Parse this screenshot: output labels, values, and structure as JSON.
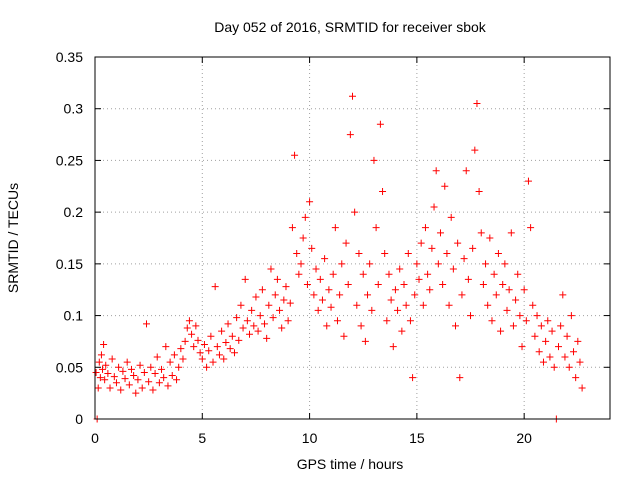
{
  "chart_data": {
    "type": "scatter",
    "title": "Day 052 of 2016, SRMTID for receiver sbok",
    "xlabel": "GPS time / hours",
    "ylabel": "SRMTID / TECUs",
    "xlim": [
      0,
      24
    ],
    "ylim": [
      0,
      0.35
    ],
    "xticks": [
      0,
      5,
      10,
      15,
      20
    ],
    "xtick_labels": [
      "0",
      "5",
      "10",
      "15",
      "20"
    ],
    "yticks": [
      0,
      0.05,
      0.1,
      0.15,
      0.2,
      0.25,
      0.3,
      0.35
    ],
    "ytick_labels": [
      "0",
      "0.05",
      "0.1",
      "0.15",
      "0.2",
      "0.25",
      "0.3",
      "0.35"
    ],
    "grid": true,
    "marker": "+",
    "color": "#ff0000",
    "series": [
      {
        "name": "SRMTID",
        "points": [
          [
            0.05,
            0.045
          ],
          [
            0.1,
            0.0
          ],
          [
            0.15,
            0.03
          ],
          [
            0.2,
            0.055
          ],
          [
            0.25,
            0.04
          ],
          [
            0.3,
            0.062
          ],
          [
            0.35,
            0.048
          ],
          [
            0.4,
            0.072
          ],
          [
            0.45,
            0.038
          ],
          [
            0.5,
            0.052
          ],
          [
            0.6,
            0.044
          ],
          [
            0.7,
            0.03
          ],
          [
            0.8,
            0.058
          ],
          [
            0.9,
            0.041
          ],
          [
            1.0,
            0.035
          ],
          [
            1.1,
            0.05
          ],
          [
            1.2,
            0.028
          ],
          [
            1.3,
            0.046
          ],
          [
            1.4,
            0.039
          ],
          [
            1.5,
            0.055
          ],
          [
            1.6,
            0.033
          ],
          [
            1.7,
            0.048
          ],
          [
            1.8,
            0.042
          ],
          [
            1.9,
            0.025
          ],
          [
            2.0,
            0.038
          ],
          [
            2.1,
            0.052
          ],
          [
            2.2,
            0.03
          ],
          [
            2.3,
            0.045
          ],
          [
            2.4,
            0.092
          ],
          [
            2.5,
            0.036
          ],
          [
            2.6,
            0.05
          ],
          [
            2.7,
            0.028
          ],
          [
            2.8,
            0.044
          ],
          [
            2.9,
            0.06
          ],
          [
            3.0,
            0.035
          ],
          [
            3.1,
            0.048
          ],
          [
            3.2,
            0.04
          ],
          [
            3.3,
            0.07
          ],
          [
            3.4,
            0.032
          ],
          [
            3.5,
            0.055
          ],
          [
            3.6,
            0.042
          ],
          [
            3.7,
            0.062
          ],
          [
            3.8,
            0.038
          ],
          [
            3.9,
            0.05
          ],
          [
            4.0,
            0.068
          ],
          [
            4.1,
            0.058
          ],
          [
            4.2,
            0.075
          ],
          [
            4.3,
            0.088
          ],
          [
            4.4,
            0.095
          ],
          [
            4.5,
            0.082
          ],
          [
            4.6,
            0.07
          ],
          [
            4.7,
            0.09
          ],
          [
            4.8,
            0.076
          ],
          [
            4.9,
            0.064
          ],
          [
            5.0,
            0.058
          ],
          [
            5.1,
            0.072
          ],
          [
            5.2,
            0.05
          ],
          [
            5.3,
            0.066
          ],
          [
            5.4,
            0.08
          ],
          [
            5.5,
            0.055
          ],
          [
            5.6,
            0.128
          ],
          [
            5.7,
            0.07
          ],
          [
            5.8,
            0.062
          ],
          [
            5.9,
            0.085
          ],
          [
            6.0,
            0.058
          ],
          [
            6.1,
            0.074
          ],
          [
            6.2,
            0.092
          ],
          [
            6.3,
            0.068
          ],
          [
            6.4,
            0.08
          ],
          [
            6.5,
            0.064
          ],
          [
            6.6,
            0.098
          ],
          [
            6.7,
            0.076
          ],
          [
            6.8,
            0.11
          ],
          [
            6.9,
            0.088
          ],
          [
            7.0,
            0.135
          ],
          [
            7.1,
            0.095
          ],
          [
            7.2,
            0.082
          ],
          [
            7.3,
            0.105
          ],
          [
            7.4,
            0.09
          ],
          [
            7.5,
            0.118
          ],
          [
            7.6,
            0.085
          ],
          [
            7.7,
            0.1
          ],
          [
            7.8,
            0.125
          ],
          [
            7.9,
            0.092
          ],
          [
            8.0,
            0.078
          ],
          [
            8.1,
            0.11
          ],
          [
            8.2,
            0.145
          ],
          [
            8.3,
            0.098
          ],
          [
            8.4,
            0.12
          ],
          [
            8.5,
            0.135
          ],
          [
            8.6,
            0.105
          ],
          [
            8.7,
            0.088
          ],
          [
            8.8,
            0.115
          ],
          [
            8.9,
            0.128
          ],
          [
            9.0,
            0.095
          ],
          [
            9.1,
            0.112
          ],
          [
            9.2,
            0.185
          ],
          [
            9.3,
            0.255
          ],
          [
            9.4,
            0.16
          ],
          [
            9.5,
            0.14
          ],
          [
            9.6,
            0.15
          ],
          [
            9.7,
            0.175
          ],
          [
            9.8,
            0.195
          ],
          [
            9.9,
            0.13
          ],
          [
            10.0,
            0.21
          ],
          [
            10.1,
            0.165
          ],
          [
            10.2,
            0.12
          ],
          [
            10.3,
            0.145
          ],
          [
            10.4,
            0.105
          ],
          [
            10.5,
            0.135
          ],
          [
            10.6,
            0.115
          ],
          [
            10.7,
            0.155
          ],
          [
            10.8,
            0.09
          ],
          [
            10.9,
            0.125
          ],
          [
            11.0,
            0.108
          ],
          [
            11.1,
            0.14
          ],
          [
            11.2,
            0.185
          ],
          [
            11.3,
            0.095
          ],
          [
            11.4,
            0.12
          ],
          [
            11.5,
            0.15
          ],
          [
            11.6,
            0.08
          ],
          [
            11.7,
            0.17
          ],
          [
            11.8,
            0.13
          ],
          [
            11.9,
            0.275
          ],
          [
            12.0,
            0.312
          ],
          [
            12.1,
            0.2
          ],
          [
            12.2,
            0.11
          ],
          [
            12.3,
            0.16
          ],
          [
            12.4,
            0.09
          ],
          [
            12.5,
            0.14
          ],
          [
            12.6,
            0.075
          ],
          [
            12.7,
            0.12
          ],
          [
            12.8,
            0.15
          ],
          [
            12.9,
            0.105
          ],
          [
            13.0,
            0.25
          ],
          [
            13.1,
            0.185
          ],
          [
            13.2,
            0.13
          ],
          [
            13.3,
            0.285
          ],
          [
            13.4,
            0.22
          ],
          [
            13.5,
            0.16
          ],
          [
            13.6,
            0.095
          ],
          [
            13.7,
            0.14
          ],
          [
            13.8,
            0.115
          ],
          [
            13.9,
            0.07
          ],
          [
            14.0,
            0.125
          ],
          [
            14.1,
            0.105
          ],
          [
            14.2,
            0.145
          ],
          [
            14.3,
            0.085
          ],
          [
            14.4,
            0.13
          ],
          [
            14.5,
            0.11
          ],
          [
            14.6,
            0.16
          ],
          [
            14.7,
            0.095
          ],
          [
            14.8,
            0.04
          ],
          [
            14.9,
            0.12
          ],
          [
            15.0,
            0.15
          ],
          [
            15.1,
            0.135
          ],
          [
            15.2,
            0.17
          ],
          [
            15.3,
            0.11
          ],
          [
            15.4,
            0.185
          ],
          [
            15.5,
            0.14
          ],
          [
            15.6,
            0.125
          ],
          [
            15.7,
            0.165
          ],
          [
            15.8,
            0.205
          ],
          [
            15.9,
            0.24
          ],
          [
            16.0,
            0.15
          ],
          [
            16.1,
            0.18
          ],
          [
            16.2,
            0.13
          ],
          [
            16.3,
            0.225
          ],
          [
            16.4,
            0.16
          ],
          [
            16.5,
            0.11
          ],
          [
            16.6,
            0.195
          ],
          [
            16.7,
            0.145
          ],
          [
            16.8,
            0.09
          ],
          [
            16.9,
            0.17
          ],
          [
            17.0,
            0.04
          ],
          [
            17.1,
            0.12
          ],
          [
            17.2,
            0.155
          ],
          [
            17.3,
            0.24
          ],
          [
            17.4,
            0.135
          ],
          [
            17.5,
            0.1
          ],
          [
            17.6,
            0.165
          ],
          [
            17.7,
            0.26
          ],
          [
            17.8,
            0.305
          ],
          [
            17.9,
            0.22
          ],
          [
            18.0,
            0.18
          ],
          [
            18.1,
            0.13
          ],
          [
            18.2,
            0.15
          ],
          [
            18.3,
            0.11
          ],
          [
            18.4,
            0.175
          ],
          [
            18.5,
            0.095
          ],
          [
            18.6,
            0.14
          ],
          [
            18.7,
            0.12
          ],
          [
            18.8,
            0.16
          ],
          [
            18.9,
            0.085
          ],
          [
            19.0,
            0.13
          ],
          [
            19.1,
            0.15
          ],
          [
            19.2,
            0.105
          ],
          [
            19.3,
            0.125
          ],
          [
            19.4,
            0.18
          ],
          [
            19.5,
            0.09
          ],
          [
            19.6,
            0.115
          ],
          [
            19.7,
            0.14
          ],
          [
            19.8,
            0.1
          ],
          [
            19.9,
            0.07
          ],
          [
            20.0,
            0.125
          ],
          [
            20.1,
            0.095
          ],
          [
            20.2,
            0.23
          ],
          [
            20.3,
            0.185
          ],
          [
            20.4,
            0.11
          ],
          [
            20.5,
            0.08
          ],
          [
            20.6,
            0.1
          ],
          [
            20.7,
            0.065
          ],
          [
            20.8,
            0.09
          ],
          [
            20.9,
            0.055
          ],
          [
            21.0,
            0.075
          ],
          [
            21.1,
            0.095
          ],
          [
            21.2,
            0.06
          ],
          [
            21.3,
            0.085
          ],
          [
            21.4,
            0.05
          ],
          [
            21.5,
            0.0
          ],
          [
            21.6,
            0.07
          ],
          [
            21.7,
            0.09
          ],
          [
            21.8,
            0.12
          ],
          [
            21.9,
            0.06
          ],
          [
            22.0,
            0.08
          ],
          [
            22.1,
            0.05
          ],
          [
            22.2,
            0.1
          ],
          [
            22.3,
            0.065
          ],
          [
            22.4,
            0.04
          ],
          [
            22.5,
            0.075
          ],
          [
            22.6,
            0.055
          ],
          [
            22.7,
            0.03
          ]
        ]
      }
    ]
  }
}
